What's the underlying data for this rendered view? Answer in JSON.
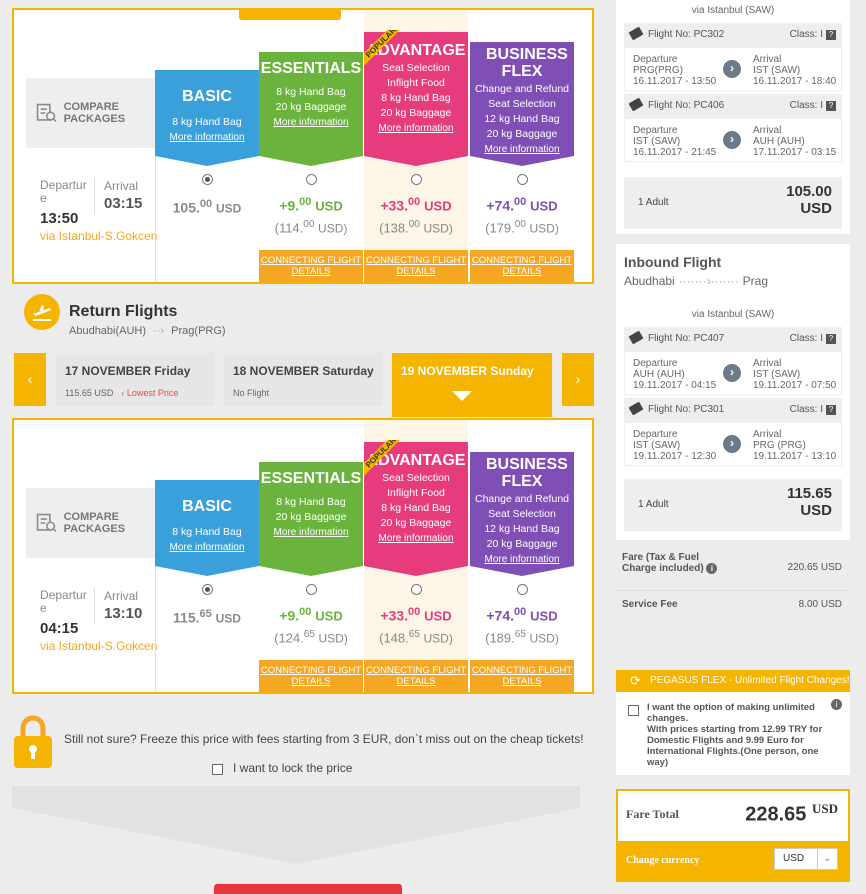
{
  "compare_label": "COMPARE PACKAGES",
  "packages": [
    {
      "name": "BASIC",
      "color": "#3aa0dc",
      "lines": [
        "8 kg Hand Bag"
      ],
      "more": "More information"
    },
    {
      "name": "ESSENTIALS",
      "color": "#6ab43e",
      "lines": [
        "8 kg Hand Bag",
        "20 kg Baggage"
      ],
      "more": "More information"
    },
    {
      "name": "ADVANTAGE",
      "color": "#e63c7d",
      "lines": [
        "Seat Selection",
        "Inflight Food",
        "8 kg Hand Bag",
        "20 kg Baggage"
      ],
      "more": "More information",
      "badge": "POPULAR"
    },
    {
      "name": "BUSINESS FLEX",
      "color": "#7f4fb5",
      "lines": [
        "Change and Refund",
        "Seat Selection",
        "12 kg Hand Bag",
        "20 kg Baggage"
      ],
      "more": "More information"
    }
  ],
  "connecting_label": "CONNECTING FLIGHT DETAILS",
  "outbound_fares": {
    "departure_label": "Departure",
    "arrival_label": "Arrival",
    "dep_time": "13:50",
    "arr_time": "03:15",
    "via": "via Istanbul-S.Gokcen",
    "basic_main": "105.",
    "basic_dec": "00",
    "basic_cur": "USD",
    "ess_plus": "+9.",
    "ess_dec": "00",
    "ess_cur": "USD",
    "ess_total": "(114.",
    "ess_total_dec": "00",
    "ess_total_cur": "USD)",
    "adv_plus": "+33.",
    "adv_dec": "00",
    "adv_cur": "USD",
    "adv_total": "(138.",
    "adv_total_dec": "00",
    "adv_total_cur": "USD)",
    "bus_plus": "+74.",
    "bus_dec": "00",
    "bus_cur": "USD",
    "bus_total": "(179.",
    "bus_total_dec": "00",
    "bus_total_cur": "USD)"
  },
  "return": {
    "title": "Return Flights",
    "from": "Abudhabi(AUH)",
    "to": "Prag(PRG)",
    "dates": [
      {
        "label": "17 NOVEMBER Friday",
        "price": "115.65 USD",
        "note": "Lowest Price"
      },
      {
        "label": "18 NOVEMBER Saturday",
        "price": "No Flight"
      },
      {
        "label": "19 NOVEMBER Sunday"
      }
    ]
  },
  "return_fares": {
    "departure_label": "Departure",
    "arrival_label": "Arrival",
    "dep_time": "04:15",
    "arr_time": "13:10",
    "via": "via Istanbul-S.Gokcen",
    "basic_main": "115.",
    "basic_dec": "65",
    "basic_cur": "USD",
    "ess_plus": "+9.",
    "ess_dec": "00",
    "ess_cur": "USD",
    "ess_total": "(124.",
    "ess_total_dec": "65",
    "ess_total_cur": "USD)",
    "adv_plus": "+33.",
    "adv_dec": "00",
    "adv_cur": "USD",
    "adv_total": "(148.",
    "adv_total_dec": "65",
    "adv_total_cur": "USD)",
    "bus_plus": "+74.",
    "bus_dec": "00",
    "bus_cur": "USD",
    "bus_total": "(189.",
    "bus_total_dec": "65",
    "bus_total_cur": "USD)"
  },
  "lock": {
    "text": "Still not sure? Freeze this price with fees starting from 3 EUR, don`t miss out on the cheap tickets!",
    "checkbox": "I want to lock the price"
  },
  "sidebar": {
    "outbound_via": "via Istanbul (SAW)",
    "outbound_flights": [
      {
        "flight": "Flight No: PC302",
        "class": "Class: I",
        "dep_label": "Departure",
        "dep_code": "PRG(PRG)",
        "dep_dt": "16.11.2017 - 13:50",
        "arr_label": "Arrival",
        "arr_code": "IST (SAW)",
        "arr_dt": "16.11.2017 - 18:40"
      },
      {
        "flight": "Flight No: PC406",
        "class": "Class: I",
        "dep_label": "Departure",
        "dep_code": "IST (SAW)",
        "dep_dt": "16.11.2017 - 21:45",
        "arr_label": "Arrival",
        "arr_code": "AUH (AUH)",
        "arr_dt": "17.11.2017 - 03:15"
      }
    ],
    "outbound_adult": "1 Adult",
    "outbound_price": "105.00 USD",
    "inbound_title": "Inbound Flight",
    "inbound_from": "Abudhabi",
    "inbound_to": "Prag",
    "inbound_via": "via Istanbul (SAW)",
    "inbound_flights": [
      {
        "flight": "Flight No: PC407",
        "class": "Class: I",
        "dep_label": "Departure",
        "dep_code": "AUH (AUH)",
        "dep_dt": "19.11.2017 - 04:15",
        "arr_label": "Arrival",
        "arr_code": "IST (SAW)",
        "arr_dt": "19.11.2017 - 07:50"
      },
      {
        "flight": "Flight No: PC301",
        "class": "Class: I",
        "dep_label": "Departure",
        "dep_code": "IST (SAW)",
        "dep_dt": "19.11.2017 - 12:30",
        "arr_label": "Arrival",
        "arr_code": "PRG (PRG)",
        "arr_dt": "19.11.2017 - 13:10"
      }
    ],
    "inbound_adult": "1 Adult",
    "inbound_price": "115.65 USD",
    "fare_label": "Fare (Tax & Fuel Charge included)",
    "fare_value": "220.65 USD",
    "service_label": "Service Fee",
    "service_value": "8.00 USD",
    "flex_title": "PEGASUS FLEX - Unlimited Flight Changes!",
    "flex_text1": "I want the option of making unlimited changes.",
    "flex_text2": "With prices starting from 12.99 TRY for Domestic Flights and 9.99 Euro for International Flights.(One person, one way)",
    "total_label": "Fare Total",
    "total_value": "228.65",
    "total_cur": "USD",
    "change_currency": "Change currency",
    "currency": "USD"
  }
}
